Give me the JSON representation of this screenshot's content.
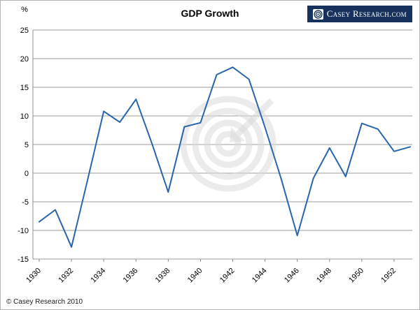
{
  "header": {
    "title": "GDP Growth",
    "logo_text": "Casey Research.com"
  },
  "footer": {
    "copyright": "© Casey Research 2010"
  },
  "colors": {
    "line": "#2766ad",
    "grid": "#9e9e9e",
    "axis": "#8c8c8c",
    "watermark": "#dadada",
    "logo_bg": "#16325c"
  },
  "chart_data": {
    "type": "line",
    "title": "GDP Growth",
    "ylabel": "%",
    "x": [
      1930,
      1931,
      1932,
      1933,
      1934,
      1935,
      1936,
      1937,
      1938,
      1939,
      1940,
      1941,
      1942,
      1943,
      1944,
      1945,
      1946,
      1947,
      1948,
      1949,
      1950,
      1951,
      1952,
      1953
    ],
    "values": [
      -8.5,
      -6.4,
      -12.9,
      -1.2,
      10.8,
      8.9,
      12.9,
      5.1,
      -3.3,
      8.1,
      8.8,
      17.2,
      18.5,
      16.4,
      8.0,
      -1.0,
      -10.9,
      -0.9,
      4.4,
      -0.6,
      8.7,
      7.7,
      3.8,
      4.6
    ],
    "ylim": [
      -15,
      25
    ],
    "ytick_step": 5,
    "xtick_labels": [
      1930,
      1932,
      1934,
      1936,
      1938,
      1940,
      1942,
      1944,
      1946,
      1948,
      1950,
      1952
    ],
    "grid": true,
    "legend_position": "none",
    "series_name": "GDP Growth %"
  }
}
